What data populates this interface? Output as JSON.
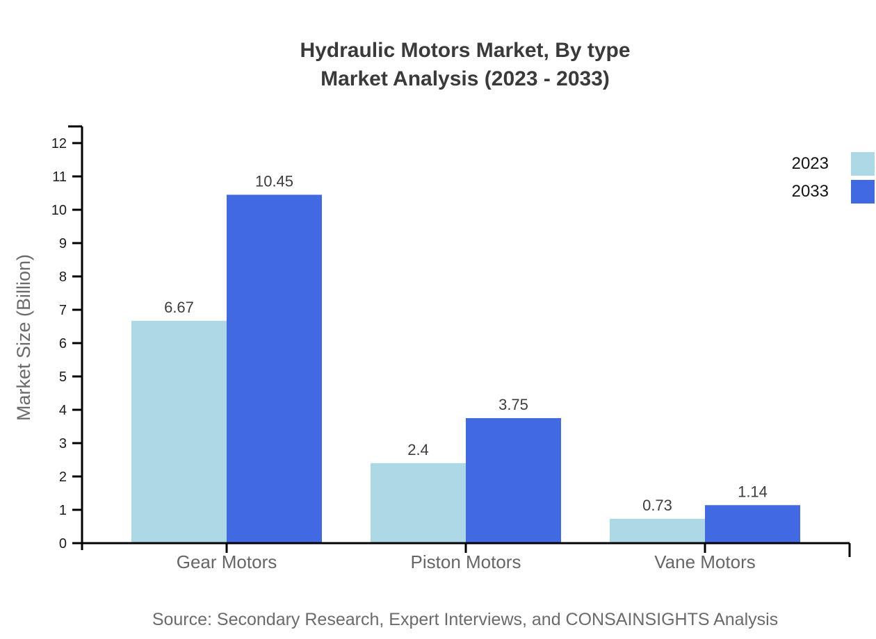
{
  "header": {
    "line1": "Hydraulic Motors Market, By type",
    "line2": "Market Analysis (2023 - 2033)"
  },
  "source": {
    "text": "Source: Secondary Research, Expert Interviews, and CONSAINSIGHTS Analysis"
  },
  "chart_data": {
    "type": "bar",
    "title": "Hydraulic Motors Market, By type Market Analysis (2023 - 2033)",
    "categories": [
      "Gear Motors",
      "Piston Motors",
      "Vane Motors"
    ],
    "series": [
      {
        "name": "2023",
        "color": "#ADD8E6",
        "values": [
          6.67,
          2.4,
          0.73
        ]
      },
      {
        "name": "2033",
        "color": "#4169E1",
        "values": [
          10.45,
          3.75,
          1.14
        ]
      }
    ],
    "value_labels": {
      "2023": [
        "6.67",
        "2.4",
        "0.73"
      ],
      "2033": [
        "10.45",
        "3.75",
        "1.14"
      ]
    },
    "xlabel": "",
    "ylabel": "Market Size (Billion)",
    "ylim": [
      0,
      12
    ],
    "ytick_step": 1,
    "y_ticks": [
      0,
      1,
      2,
      3,
      4,
      5,
      6,
      7,
      8,
      9,
      10,
      11,
      12
    ],
    "grid": false,
    "legend_position": "top-right",
    "colors": {
      "axis": "#000000",
      "tick_label": "#1a1a1a",
      "category_label": "#666666",
      "value_label": "#3d3d3d",
      "title": "#3a3a3a",
      "muted_text": "#6b6b6b"
    }
  }
}
